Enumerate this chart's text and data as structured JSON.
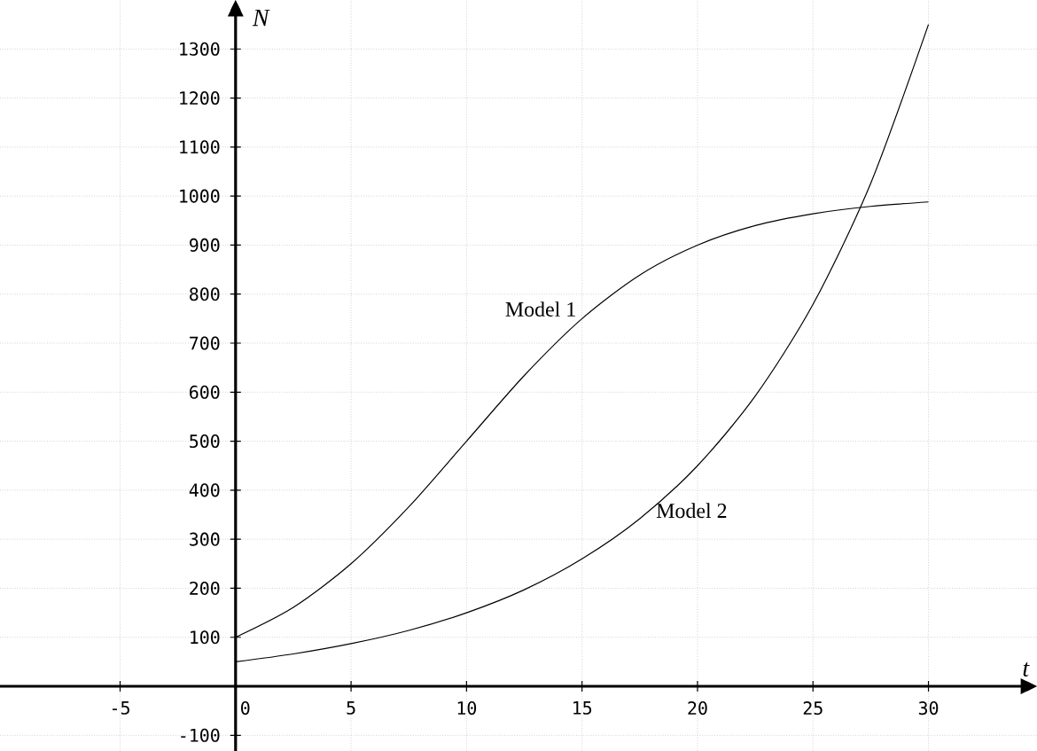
{
  "chart_data": {
    "type": "line",
    "xlabel": "t",
    "ylabel": "N",
    "x": [
      0,
      2.5,
      5,
      7.5,
      10,
      12.5,
      15,
      17.5,
      20,
      22.5,
      25,
      27.5,
      30
    ],
    "series": [
      {
        "name": "Model 1",
        "color": "#000000",
        "values": [
          100,
          161,
          250,
          366,
          500,
          634,
          750,
          839,
          900,
          940,
          964,
          979,
          988
        ]
      },
      {
        "name": "Model 2",
        "color": "#000000",
        "values": [
          50,
          66,
          87,
          114,
          150,
          197,
          260,
          342,
          450,
          592,
          779,
          1026,
          1350
        ]
      }
    ],
    "xlim": [
      -10.2,
      34.7
    ],
    "ylim": [
      -132,
      1400
    ],
    "xticks": [
      -5,
      0,
      5,
      10,
      15,
      20,
      25,
      30
    ],
    "yticks": [
      -100,
      100,
      200,
      300,
      400,
      500,
      600,
      700,
      800,
      900,
      1000,
      1100,
      1200,
      1300
    ],
    "grid": true,
    "legend": false,
    "marker": "none",
    "line_style": "solid"
  }
}
